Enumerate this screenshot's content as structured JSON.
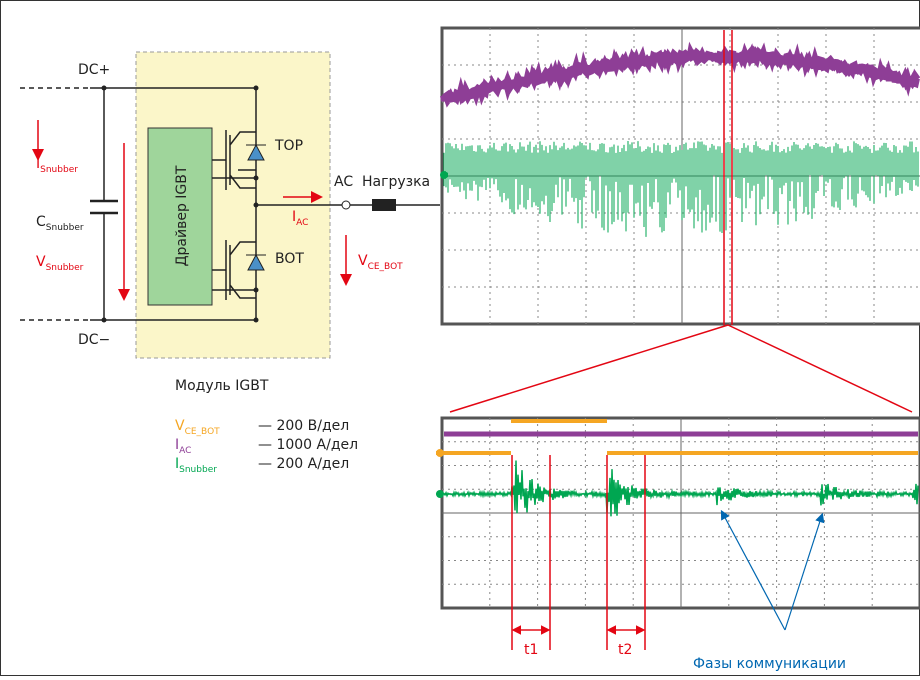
{
  "circuit": {
    "dc_plus": "DC+",
    "dc_minus": "DC−",
    "i_snubber": {
      "main": "I",
      "sub": "Snubber"
    },
    "c_snubber": {
      "main": "C",
      "sub": "Snubber"
    },
    "v_snubber": {
      "main": "V",
      "sub": "Snubber"
    },
    "driver": "Драйвер IGBT",
    "top": "TOP",
    "bot": "BOT",
    "ac": "AC",
    "load": "Нагрузка",
    "i_ac": {
      "main": "I",
      "sub": "AC"
    },
    "v_ce_bot": {
      "main": "V",
      "sub": "CE_BOT"
    },
    "module": "Модуль IGBT"
  },
  "legend": [
    {
      "main": "V",
      "sub": "CE_BOT",
      "scale": "— 200 В/дел"
    },
    {
      "main": "I",
      "sub": "AC",
      "scale": "— 1000 А/дел"
    },
    {
      "main": "I",
      "sub": "Snubber",
      "scale": "— 200 А/дел"
    }
  ],
  "annotations": {
    "t1": "t1",
    "t2": "t2",
    "phases": "Фазы коммуникации"
  }
}
